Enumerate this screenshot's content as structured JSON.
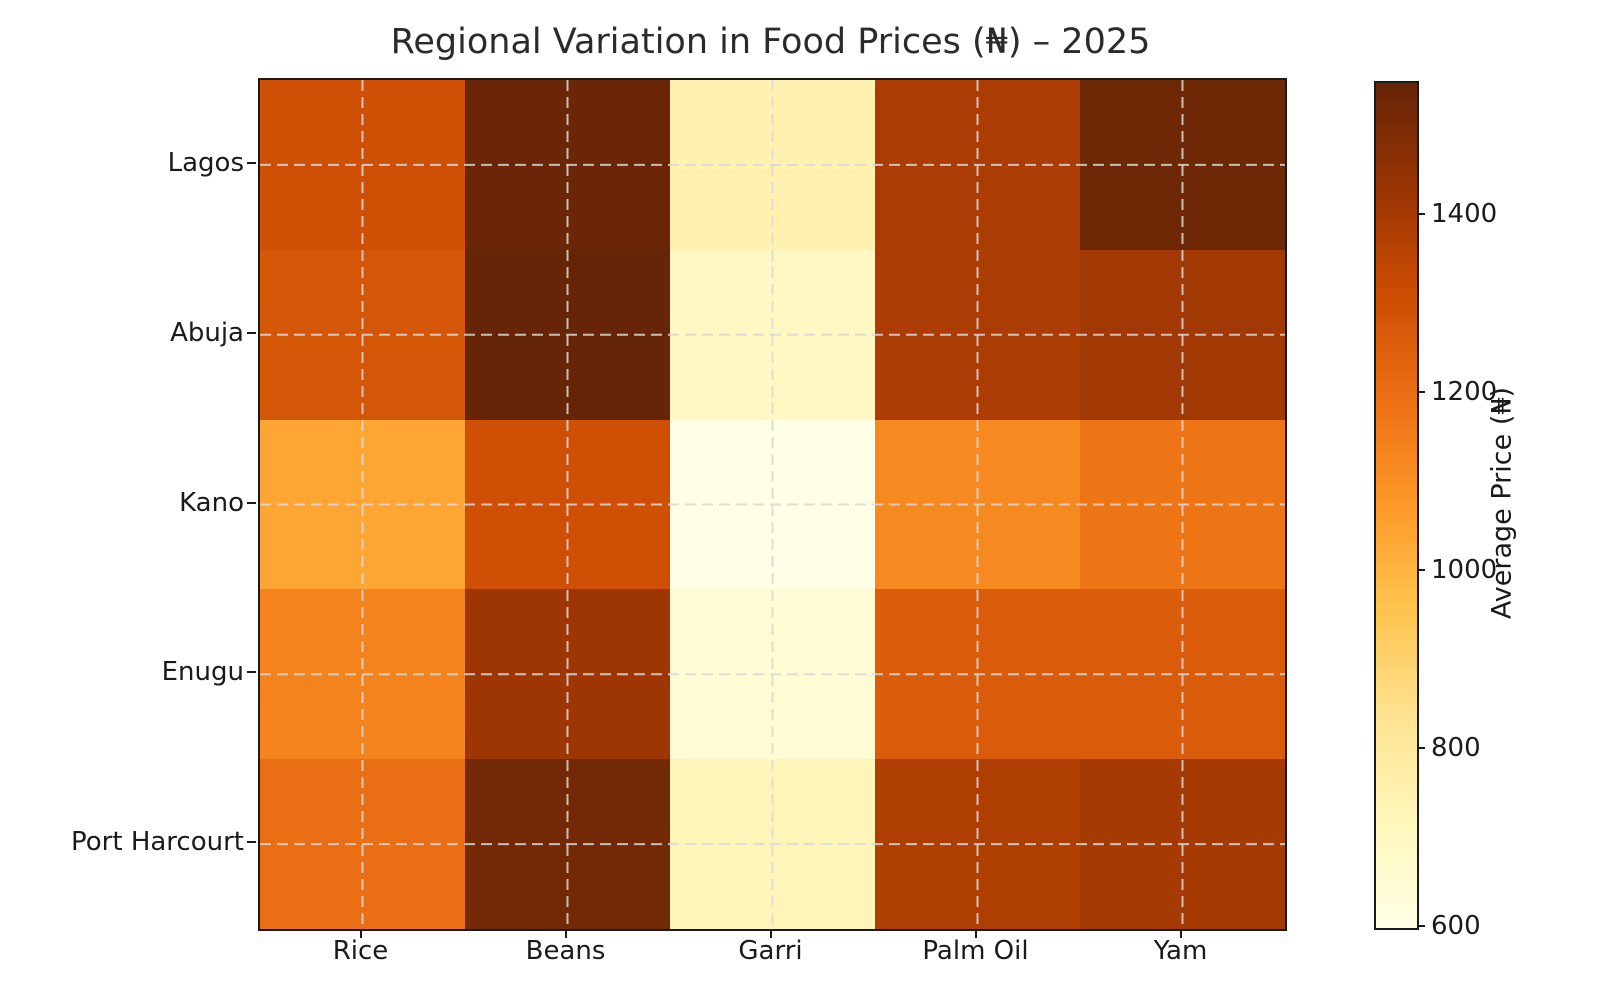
{
  "chart_data": {
    "type": "heatmap",
    "title": "Regional Variation in Food Prices (₦) – 2025",
    "rows": [
      "Lagos",
      "Abuja",
      "Kano",
      "Enugu",
      "Port Harcourt"
    ],
    "columns": [
      "Rice",
      "Beans",
      "Garri",
      "Palm Oil",
      "Yam"
    ],
    "values": [
      [
        1300,
        1540,
        750,
        1390,
        1530
      ],
      [
        1280,
        1550,
        700,
        1390,
        1410
      ],
      [
        1040,
        1300,
        600,
        1120,
        1180
      ],
      [
        1140,
        1420,
        650,
        1260,
        1260
      ],
      [
        1200,
        1520,
        730,
        1380,
        1400
      ]
    ],
    "colorbar": {
      "label": "Average Price (₦)",
      "ticks": [
        600,
        800,
        1000,
        1200,
        1400
      ],
      "vmin": 600,
      "vmax": 1550
    },
    "colormap": {
      "name": "YlOrBr",
      "stops": [
        "#ffffe5",
        "#fff7bc",
        "#fee391",
        "#fec44f",
        "#fe9929",
        "#ec7014",
        "#cc4c02",
        "#993404",
        "#662506"
      ]
    },
    "layout_hints": {
      "grid": "dashed lines at cell centers",
      "legend_position": "right colorbar",
      "tick_side": "bottom-left"
    }
  }
}
